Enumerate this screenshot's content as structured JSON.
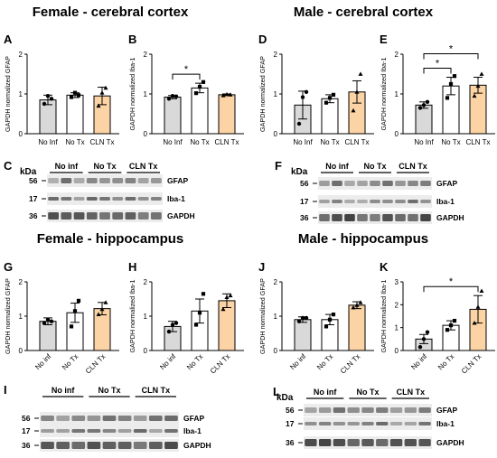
{
  "section_titles": {
    "female_cortex": "Female - cerebral cortex",
    "male_cortex": "Male - cerebral cortex",
    "female_hippocampus": "Female - hippocampus",
    "male_hippocampus": "Male - hippocampus"
  },
  "colors": {
    "no_inf": "#d9d9d9",
    "no_tx": "#ffffff",
    "cln_tx": "#fbd3a4",
    "axis": "#000000"
  },
  "chart_data": [
    {
      "panel": "A",
      "type": "bar",
      "ylabel": "GAPDH normalized GFAP",
      "ylim": [
        0,
        2
      ],
      "yticks": [
        "0",
        "1",
        "2"
      ],
      "tick_angle": 0,
      "categories": [
        "No Inf",
        "No Tx",
        "CLN Tx"
      ],
      "values": [
        0.85,
        0.97,
        0.95
      ],
      "errors": [
        0.12,
        0.06,
        0.22
      ],
      "points": [
        [
          0.75,
          0.95,
          0.88
        ],
        [
          0.92,
          1.03,
          0.97
        ],
        [
          0.7,
          1.03,
          1.15
        ]
      ],
      "significance": []
    },
    {
      "panel": "B",
      "type": "bar",
      "ylabel": "GAPDH normalized Iba-1",
      "ylim": [
        0,
        2
      ],
      "yticks": [
        "0",
        "1",
        "2"
      ],
      "tick_angle": 0,
      "categories": [
        "No Inf",
        "No Tx",
        "CLN Tx"
      ],
      "values": [
        0.92,
        1.15,
        0.98
      ],
      "errors": [
        0.04,
        0.12,
        0.02
      ],
      "points": [
        [
          0.88,
          0.95,
          0.94
        ],
        [
          1.02,
          1.18,
          1.3
        ],
        [
          0.96,
          0.99,
          0.98
        ]
      ],
      "significance": [
        {
          "from": 0,
          "to": 1,
          "label": "*"
        }
      ]
    },
    {
      "panel": "D",
      "type": "bar",
      "ylabel": "GAPDH normalized GFAP",
      "ylim": [
        0,
        2
      ],
      "yticks": [
        "0",
        "1",
        "2"
      ],
      "tick_angle": 0,
      "categories": [
        "No Inf",
        "No Tx",
        "CLN Tx"
      ],
      "values": [
        0.72,
        0.88,
        1.05
      ],
      "errors": [
        0.35,
        0.1,
        0.28
      ],
      "points": [
        [
          0.25,
          0.92,
          1.05
        ],
        [
          0.78,
          0.9,
          0.98
        ],
        [
          0.58,
          1.05,
          1.5
        ]
      ],
      "significance": []
    },
    {
      "panel": "E",
      "type": "bar",
      "ylabel": "GAPDH normalized Iba-1",
      "ylim": [
        0,
        2
      ],
      "yticks": [
        "0",
        "1",
        "2"
      ],
      "tick_angle": 0,
      "categories": [
        "No Inf",
        "No Tx",
        "CLN Tx"
      ],
      "values": [
        0.72,
        1.2,
        1.22
      ],
      "errors": [
        0.08,
        0.22,
        0.2
      ],
      "points": [
        [
          0.65,
          0.72,
          0.8
        ],
        [
          0.9,
          1.25,
          1.45
        ],
        [
          0.95,
          1.2,
          1.5
        ]
      ],
      "significance": [
        {
          "from": 0,
          "to": 1,
          "label": "*"
        },
        {
          "from": 0,
          "to": 2,
          "label": "*"
        }
      ]
    },
    {
      "panel": "G",
      "type": "bar",
      "ylabel": "GAPDH normalized GFAP",
      "ylim": [
        0,
        2
      ],
      "yticks": [
        "0",
        "1",
        "2"
      ],
      "tick_angle": -45,
      "categories": [
        "No inf",
        "No Tx",
        "CLN Tx"
      ],
      "values": [
        0.85,
        1.1,
        1.22
      ],
      "errors": [
        0.1,
        0.28,
        0.18
      ],
      "points": [
        [
          0.8,
          0.9,
          0.85
        ],
        [
          0.7,
          1.15,
          1.45
        ],
        [
          1.05,
          1.2,
          1.4
        ]
      ],
      "significance": []
    },
    {
      "panel": "H",
      "type": "bar",
      "ylabel": "GAPDH normalized Iba-1",
      "ylim": [
        0,
        2
      ],
      "yticks": [
        "0",
        "1",
        "2"
      ],
      "tick_angle": -45,
      "categories": [
        "No inf",
        "No Tx",
        "CLN Tx"
      ],
      "values": [
        0.7,
        1.15,
        1.45
      ],
      "errors": [
        0.15,
        0.35,
        0.2
      ],
      "points": [
        [
          0.55,
          0.75,
          0.8
        ],
        [
          0.75,
          1.1,
          1.65
        ],
        [
          1.2,
          1.55,
          1.6
        ]
      ],
      "significance": []
    },
    {
      "panel": "J",
      "type": "bar",
      "ylabel": "GAPDH normalized GFAP",
      "ylim": [
        0,
        2
      ],
      "yticks": [
        "0",
        "1",
        "2"
      ],
      "tick_angle": -45,
      "categories": [
        "No inf",
        "No Tx",
        "CLN Tx"
      ],
      "values": [
        0.9,
        0.9,
        1.32
      ],
      "errors": [
        0.08,
        0.15,
        0.1
      ],
      "points": [
        [
          0.85,
          0.95,
          0.95
        ],
        [
          0.7,
          0.9,
          1.05
        ],
        [
          1.25,
          1.32,
          1.4
        ]
      ],
      "significance": []
    },
    {
      "panel": "K",
      "type": "bar",
      "ylabel": "GAPDH normalized Iba-1",
      "ylim": [
        0,
        3
      ],
      "yticks": [
        "0",
        "1",
        "2",
        "3"
      ],
      "tick_angle": -45,
      "categories": [
        "No inf",
        "No Tx",
        "CLN Tx"
      ],
      "values": [
        0.5,
        1.1,
        1.8
      ],
      "errors": [
        0.2,
        0.2,
        0.6
      ],
      "points": [
        [
          0.15,
          0.5,
          0.8
        ],
        [
          0.9,
          1.1,
          1.3
        ],
        [
          1.2,
          1.9,
          2.6
        ]
      ],
      "significance": [
        {
          "from": 0,
          "to": 2,
          "label": "*"
        }
      ]
    }
  ],
  "blots": [
    {
      "panel": "C",
      "kda": "kDa",
      "groups": [
        "No inf",
        "No Tx",
        "CLN Tx"
      ],
      "markers": [
        "56",
        "17",
        "36"
      ],
      "proteins": [
        "GFAP",
        "Iba-1",
        "GAPDH"
      ]
    },
    {
      "panel": "F",
      "kda": "kDa",
      "groups": [
        "No inf",
        "No Tx",
        "CLN Tx"
      ],
      "markers": [
        "56",
        "17",
        "36"
      ],
      "proteins": [
        "GFAP",
        "Iba-1",
        "GAPDH"
      ]
    },
    {
      "panel": "I",
      "kda": "",
      "groups": [
        "No inf",
        "No Tx",
        "CLN Tx"
      ],
      "markers": [
        "56",
        "17",
        "36"
      ],
      "proteins": [
        "GFAP",
        "Iba-1",
        "GAPDH"
      ]
    },
    {
      "panel": "L",
      "kda": "kDa",
      "groups": [
        "No inf",
        "No Tx",
        "CLN Tx"
      ],
      "markers": [
        "56",
        "17",
        "36"
      ],
      "proteins": [
        "GFAP",
        "Iba-1",
        "GAPDH"
      ]
    }
  ]
}
